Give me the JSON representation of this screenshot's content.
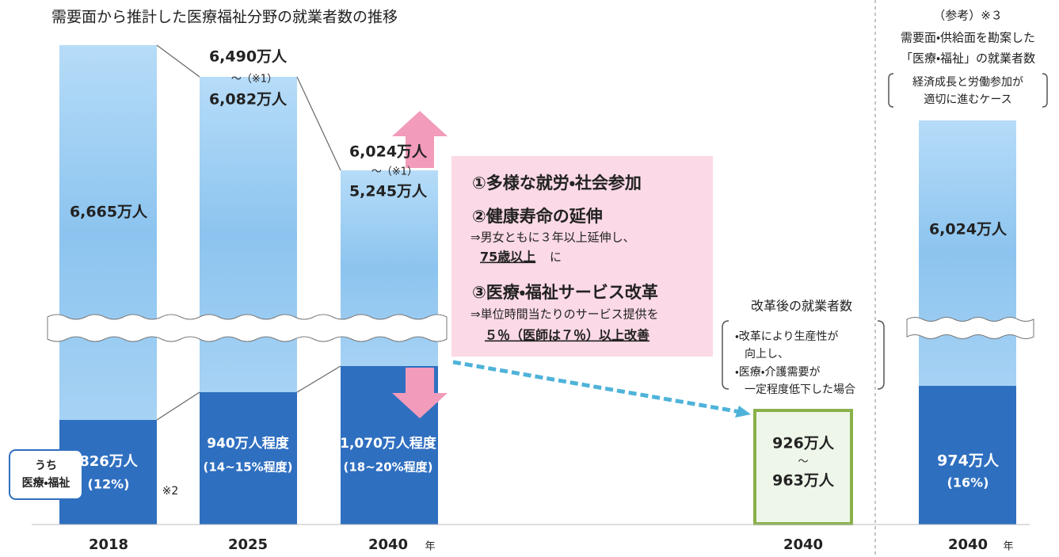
{
  "title": "需要面から推計した医療福祉分野の就業者数の推移",
  "year_suffix": "年",
  "legend_label": [
    "うち",
    "医療・福祉"
  ],
  "bars": [
    {
      "year": "2018",
      "total": "6,665万人",
      "medical": "826万人",
      "share": "(12%)",
      "note": "※2"
    },
    {
      "year": "2025",
      "upper": "6,490万人",
      "range_note": "〜（※1）",
      "lower": "6,082万人",
      "medical": "940万人程度",
      "share": "(14~15%程度)"
    },
    {
      "year": "2040",
      "upper": "6,024万人",
      "range_note": "〜（※1）",
      "lower": "5,245万人",
      "medical": "1,070万人程度",
      "share": "(18~20%程度)"
    }
  ],
  "measures": {
    "item1": "①多様な就労・社会参加",
    "item2": "②健康寿命の延伸",
    "item2_sub": "⇒男女ともに３年以上延伸し、",
    "item2_emph": "75歳以上",
    "item2_tail": "に",
    "item3": "③医療・福祉サービス改革",
    "item3_sub": "⇒単位時間当たりのサービス提供を",
    "item3_emph": "５％（医師は７％）以上改善"
  },
  "reform": {
    "title": "改革後の就業者数",
    "notes": [
      "・改革により生産性が",
      "向上し、",
      "・医療・介護需要が",
      "一定程度低下した場合"
    ],
    "year": "2040",
    "low": "926万人",
    "tilde": "〜",
    "high": "963万人"
  },
  "reference": {
    "heading": "（参考）※３",
    "lines": [
      "需要面・供給面を勘案した",
      "「医療・福祉」の就業者数"
    ],
    "case": [
      "経済成長と労働参加が",
      "適切に進むケース"
    ],
    "total": "6,024万人",
    "medical": "974万人",
    "share": "(16%)",
    "year": "2040"
  }
}
